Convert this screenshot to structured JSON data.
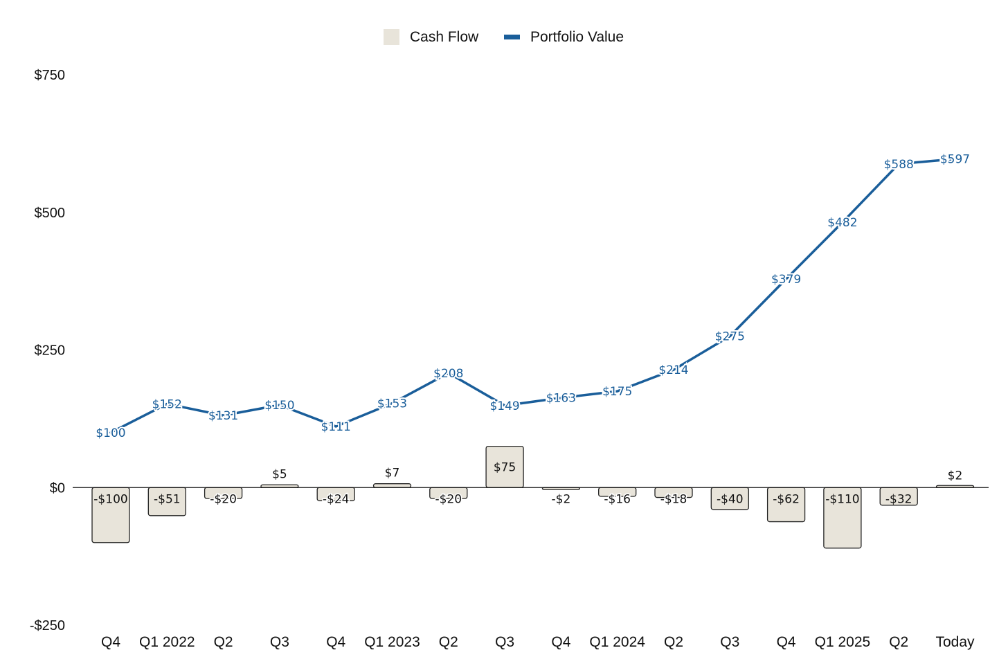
{
  "chart_data": {
    "type": "bar+line",
    "title": "",
    "xlabel": "",
    "ylabel": "",
    "categories": [
      "Q4",
      "Q1 2022",
      "Q2",
      "Q3",
      "Q4",
      "Q1 2023",
      "Q2",
      "Q3",
      "Q4",
      "Q1 2024",
      "Q2",
      "Q3",
      "Q4",
      "Q1 2025",
      "Q2",
      "Today"
    ],
    "series": [
      {
        "name": "Cash Flow",
        "type": "bar",
        "color": "#e8e4da",
        "values": [
          -100,
          -51,
          -20,
          5,
          -24,
          7,
          -20,
          75,
          -2,
          -16,
          -18,
          -40,
          -62,
          -110,
          -32,
          2
        ],
        "labels": [
          "-$100",
          "-$51",
          "-$20",
          "$5",
          "-$24",
          "$7",
          "-$20",
          "$75",
          "-$2",
          "-$16",
          "-$18",
          "-$40",
          "-$62",
          "-$110",
          "-$32",
          "$2"
        ]
      },
      {
        "name": "Portfolio Value",
        "type": "line",
        "color": "#1a5e9a",
        "values": [
          100,
          152,
          131,
          150,
          111,
          153,
          208,
          149,
          163,
          175,
          214,
          275,
          379,
          482,
          588,
          597
        ],
        "labels": [
          "$100",
          "$152",
          "$131",
          "$150",
          "$111",
          "$153",
          "$208",
          "$149",
          "$163",
          "$175",
          "$214",
          "$275",
          "$379",
          "$482",
          "$588",
          "$597"
        ]
      }
    ],
    "ylim": [
      -250,
      750
    ],
    "yticks": [
      -250,
      0,
      250,
      500,
      750
    ],
    "ytick_labels": [
      "-$250",
      "$0",
      "$250",
      "$500",
      "$750"
    ],
    "grid": false,
    "legend_position": "top-center"
  }
}
